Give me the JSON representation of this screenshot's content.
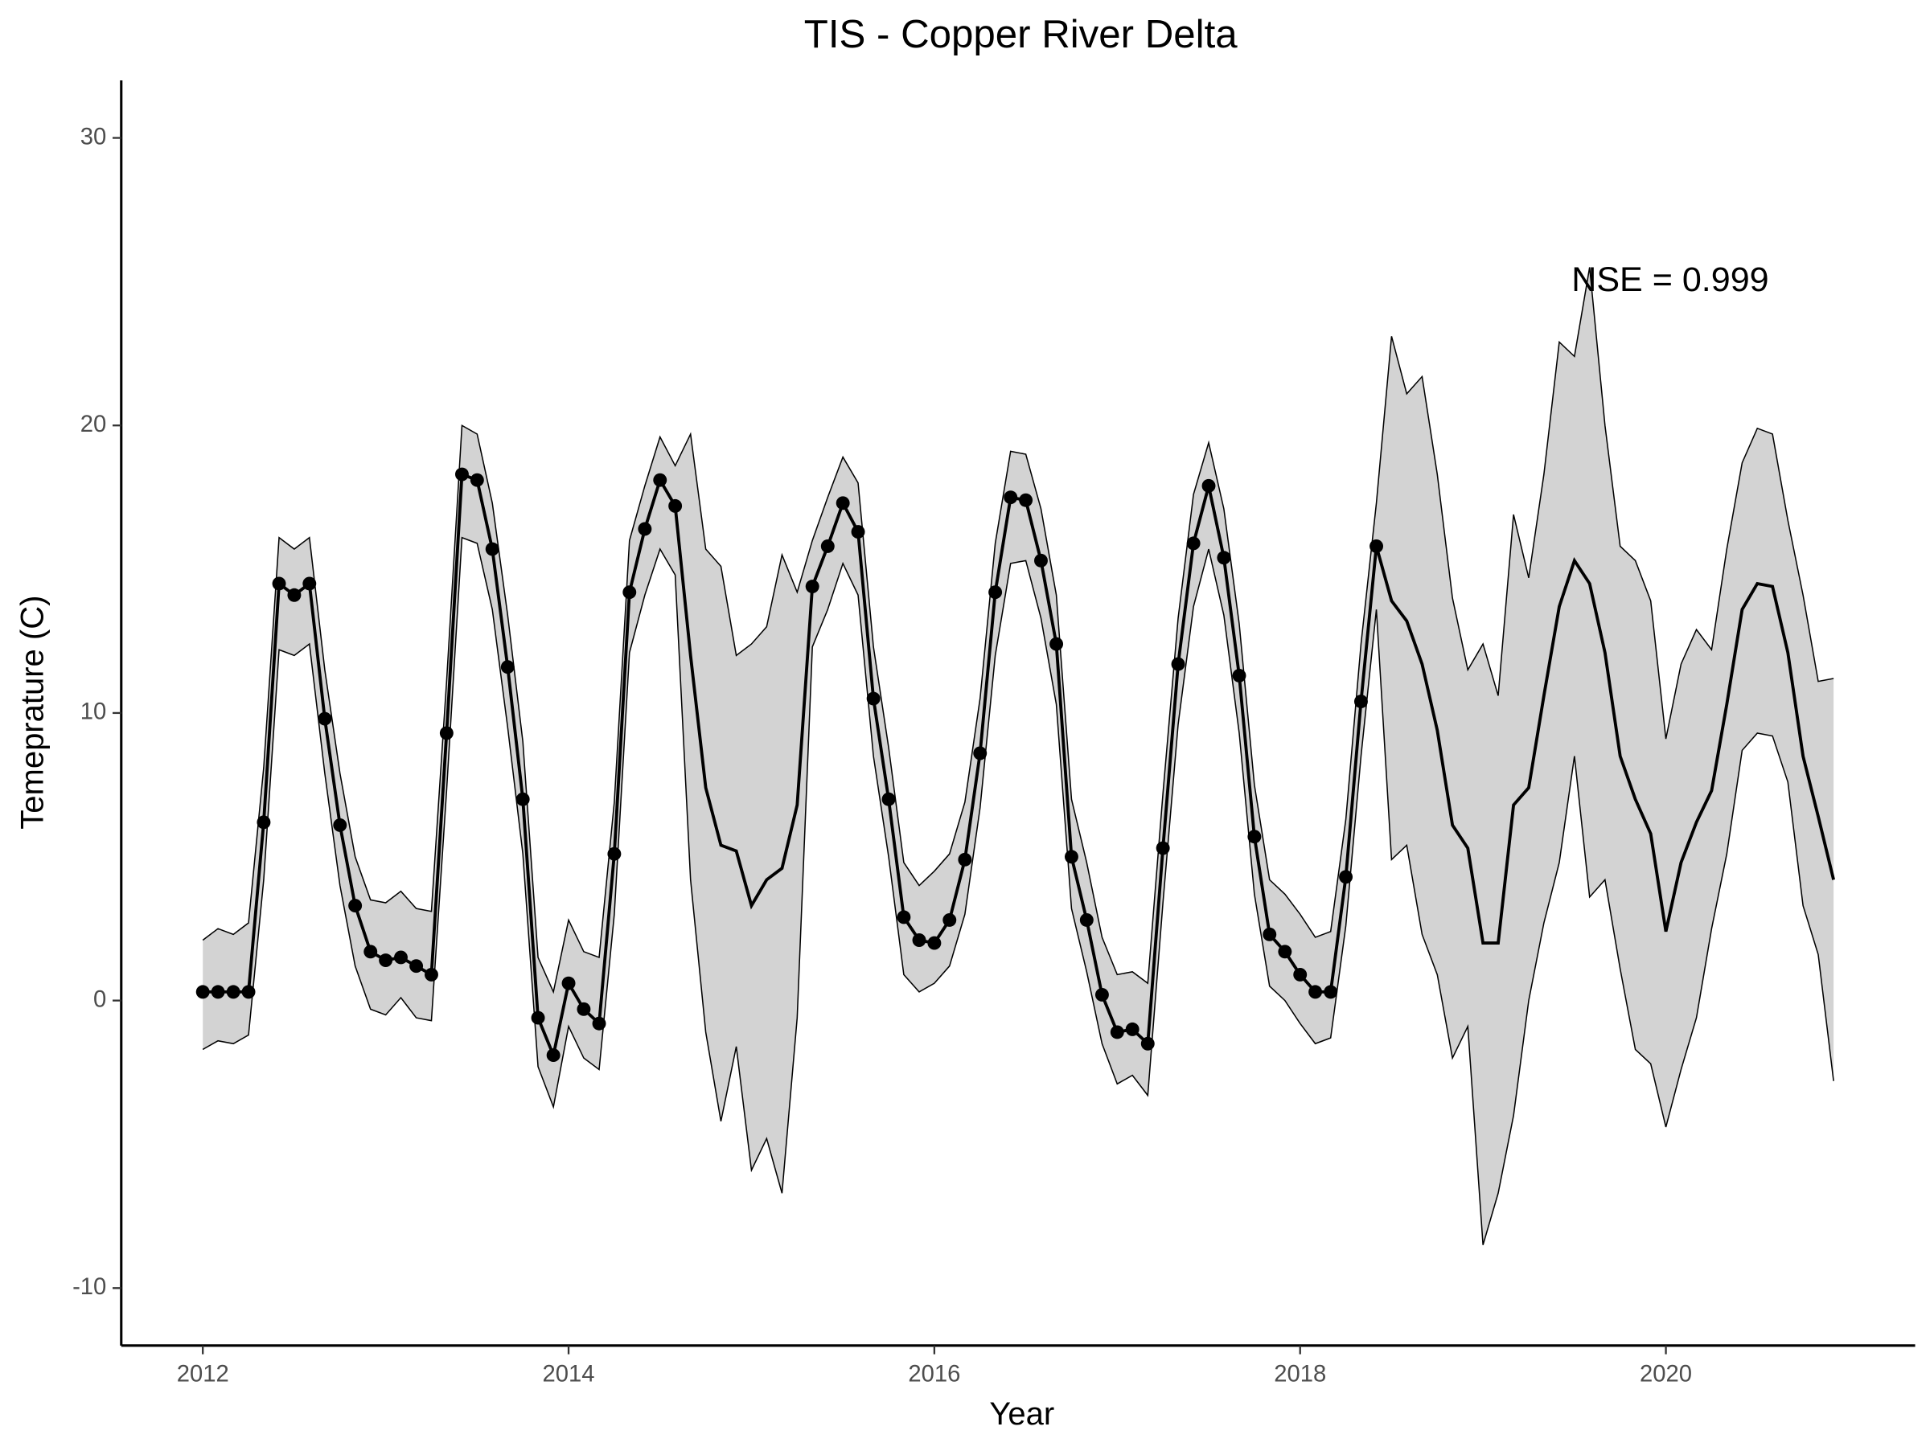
{
  "chart_data": {
    "type": "line",
    "title": "TIS - Copper River Delta",
    "xlabel": "Year",
    "ylabel": "Temeprature (C)",
    "annotation": "NSE = 0.999",
    "x": [
      2012,
      2012.083,
      2012.167,
      2012.25,
      2012.333,
      2012.417,
      2012.5,
      2012.583,
      2012.667,
      2012.75,
      2012.833,
      2012.917,
      2013,
      2013.083,
      2013.167,
      2013.25,
      2013.333,
      2013.417,
      2013.5,
      2013.583,
      2013.667,
      2013.75,
      2013.833,
      2013.917,
      2014,
      2014.083,
      2014.167,
      2014.25,
      2014.333,
      2014.417,
      2014.5,
      2014.583,
      2014.667,
      2014.75,
      2014.833,
      2014.917,
      2015,
      2015.083,
      2015.167,
      2015.25,
      2015.333,
      2015.417,
      2015.5,
      2015.583,
      2015.667,
      2015.75,
      2015.833,
      2015.917,
      2016,
      2016.083,
      2016.167,
      2016.25,
      2016.333,
      2016.417,
      2016.5,
      2016.583,
      2016.667,
      2016.75,
      2016.833,
      2016.917,
      2017,
      2017.083,
      2017.167,
      2017.25,
      2017.333,
      2017.417,
      2017.5,
      2017.583,
      2017.667,
      2017.75,
      2017.833,
      2017.917,
      2018,
      2018.083,
      2018.167,
      2018.25,
      2018.333,
      2018.417,
      2018.5,
      2018.583,
      2018.667,
      2018.75,
      2018.833,
      2018.917,
      2019,
      2019.083,
      2019.167,
      2019.25,
      2019.333,
      2019.417,
      2019.5,
      2019.583,
      2019.667,
      2019.75,
      2019.833,
      2019.917,
      2020,
      2020.083,
      2020.167,
      2020.25,
      2020.333,
      2020.417,
      2020.5,
      2020.583,
      2020.667,
      2020.75,
      2020.833,
      2020.917
    ],
    "values": [
      0.3,
      0.3,
      0.3,
      0.3,
      6.2,
      14.5,
      14.1,
      14.5,
      9.8,
      6.1,
      3.3,
      1.7,
      1.4,
      1.5,
      1.2,
      0.9,
      9.3,
      18.3,
      18.1,
      15.7,
      11.6,
      7.0,
      -0.6,
      -1.9,
      0.6,
      -0.3,
      -0.8,
      5.1,
      14.2,
      16.4,
      18.1,
      17.2,
      12.0,
      7.4,
      5.4,
      5.2,
      3.3,
      4.2,
      4.6,
      6.8,
      14.4,
      15.8,
      17.3,
      16.3,
      10.5,
      7.0,
      2.9,
      2.1,
      2.0,
      2.8,
      4.9,
      8.6,
      14.2,
      17.5,
      17.4,
      15.3,
      12.4,
      5.0,
      2.8,
      0.2,
      -1.1,
      -1.0,
      -1.5,
      5.3,
      11.7,
      15.9,
      17.9,
      15.4,
      11.3,
      5.7,
      2.3,
      1.7,
      0.9,
      0.3,
      0.3,
      4.3,
      10.4,
      15.8,
      13.9,
      13.2,
      11.7,
      9.4,
      6.1,
      5.3,
      2.0,
      2.0,
      6.8,
      7.4,
      10.6,
      13.7,
      15.3,
      14.5,
      12.1,
      8.5,
      7.0,
      5.8,
      2.4,
      4.8,
      6.2,
      7.3,
      10.3,
      13.6,
      14.5,
      14.4,
      12.1,
      8.5,
      6.4,
      4.2
    ],
    "points": [
      0.3,
      0.3,
      0.3,
      0.3,
      6.2,
      14.5,
      14.1,
      14.5,
      9.8,
      6.1,
      3.3,
      1.7,
      1.4,
      1.5,
      1.2,
      0.9,
      9.3,
      18.3,
      18.1,
      15.7,
      11.6,
      7.0,
      -0.6,
      -1.9,
      0.6,
      -0.3,
      -0.8,
      5.1,
      14.2,
      16.4,
      18.1,
      17.2,
      null,
      null,
      null,
      null,
      null,
      null,
      null,
      null,
      14.4,
      15.8,
      17.3,
      16.3,
      10.5,
      7.0,
      2.9,
      2.1,
      2.0,
      2.8,
      4.9,
      8.6,
      14.2,
      17.5,
      17.4,
      15.3,
      12.4,
      5.0,
      2.8,
      0.2,
      -1.1,
      -1.0,
      -1.5,
      5.3,
      11.7,
      15.9,
      17.9,
      15.4,
      11.3,
      5.7,
      2.3,
      1.7,
      0.9,
      0.3,
      0.3,
      4.3,
      10.4,
      15.8,
      null,
      null,
      null,
      null,
      null,
      null,
      null,
      null,
      null,
      null,
      null,
      null,
      null,
      null,
      null,
      null,
      null,
      null,
      null,
      null,
      null,
      null,
      null,
      null,
      null,
      null,
      null,
      null,
      null,
      null
    ],
    "upper": [
      2.1,
      2.5,
      2.3,
      2.7,
      8.1,
      16.1,
      15.7,
      16.1,
      11.5,
      7.9,
      5.0,
      3.5,
      3.4,
      3.8,
      3.2,
      3.1,
      11.1,
      20.0,
      19.7,
      17.3,
      13.4,
      9.0,
      1.5,
      0.3,
      2.8,
      1.7,
      1.5,
      6.9,
      16.0,
      17.9,
      19.6,
      18.6,
      19.7,
      15.7,
      15.1,
      12.0,
      12.4,
      13.0,
      15.5,
      14.2,
      16.0,
      17.5,
      18.9,
      18.0,
      12.3,
      8.8,
      4.8,
      4.0,
      4.5,
      5.1,
      6.9,
      10.5,
      15.9,
      19.1,
      19.0,
      17.1,
      14.1,
      7.0,
      4.8,
      2.2,
      0.9,
      1.0,
      0.6,
      7.2,
      13.3,
      17.6,
      19.4,
      17.1,
      13.1,
      7.5,
      4.2,
      3.7,
      3.0,
      2.2,
      2.4,
      6.3,
      12.4,
      17.3,
      23.1,
      21.1,
      21.7,
      18.3,
      14.0,
      11.5,
      12.4,
      10.6,
      16.9,
      14.7,
      18.3,
      22.9,
      22.4,
      25.5,
      20.0,
      15.8,
      15.3,
      13.9,
      9.1,
      11.7,
      12.9,
      12.2,
      15.7,
      18.7,
      19.9,
      19.7,
      16.7,
      14.1,
      11.1,
      11.2
    ],
    "lower": [
      -1.7,
      -1.4,
      -1.5,
      -1.2,
      4.2,
      12.2,
      12.0,
      12.4,
      7.9,
      4.0,
      1.2,
      -0.3,
      -0.5,
      0.1,
      -0.6,
      -0.7,
      7.3,
      16.1,
      15.9,
      13.6,
      9.5,
      5.1,
      -2.3,
      -3.7,
      -0.9,
      -2.0,
      -2.4,
      3.0,
      12.1,
      14.1,
      15.7,
      14.8,
      4.2,
      -1.1,
      -4.2,
      -1.6,
      -5.9,
      -4.8,
      -6.7,
      -0.6,
      12.3,
      13.6,
      15.2,
      14.1,
      8.5,
      5.0,
      0.9,
      0.3,
      0.6,
      1.2,
      3.0,
      6.7,
      12.0,
      15.2,
      15.3,
      13.3,
      10.3,
      3.2,
      1.0,
      -1.5,
      -2.9,
      -2.6,
      -3.3,
      3.4,
      9.6,
      13.7,
      15.7,
      13.4,
      9.3,
      3.7,
      0.5,
      0.0,
      -0.8,
      -1.5,
      -1.3,
      2.6,
      8.5,
      13.6,
      4.9,
      5.4,
      2.3,
      0.9,
      -2.0,
      -0.9,
      -8.5,
      -6.7,
      -4.0,
      0.0,
      2.7,
      4.8,
      8.5,
      3.6,
      4.2,
      1.1,
      -1.7,
      -2.2,
      -4.4,
      -2.4,
      -0.6,
      2.5,
      5.1,
      8.7,
      9.3,
      9.2,
      7.6,
      3.3,
      1.6,
      -2.8
    ],
    "color": "#000000",
    "band_color": "#d3d3d3",
    "xlim": [
      2011.554,
      2021.363
    ],
    "ylim": [
      -12,
      32
    ],
    "xticks": [
      2012,
      2014,
      2016,
      2018,
      2020
    ],
    "yticks": [
      -10,
      0,
      10,
      20,
      30
    ],
    "grid": false
  }
}
